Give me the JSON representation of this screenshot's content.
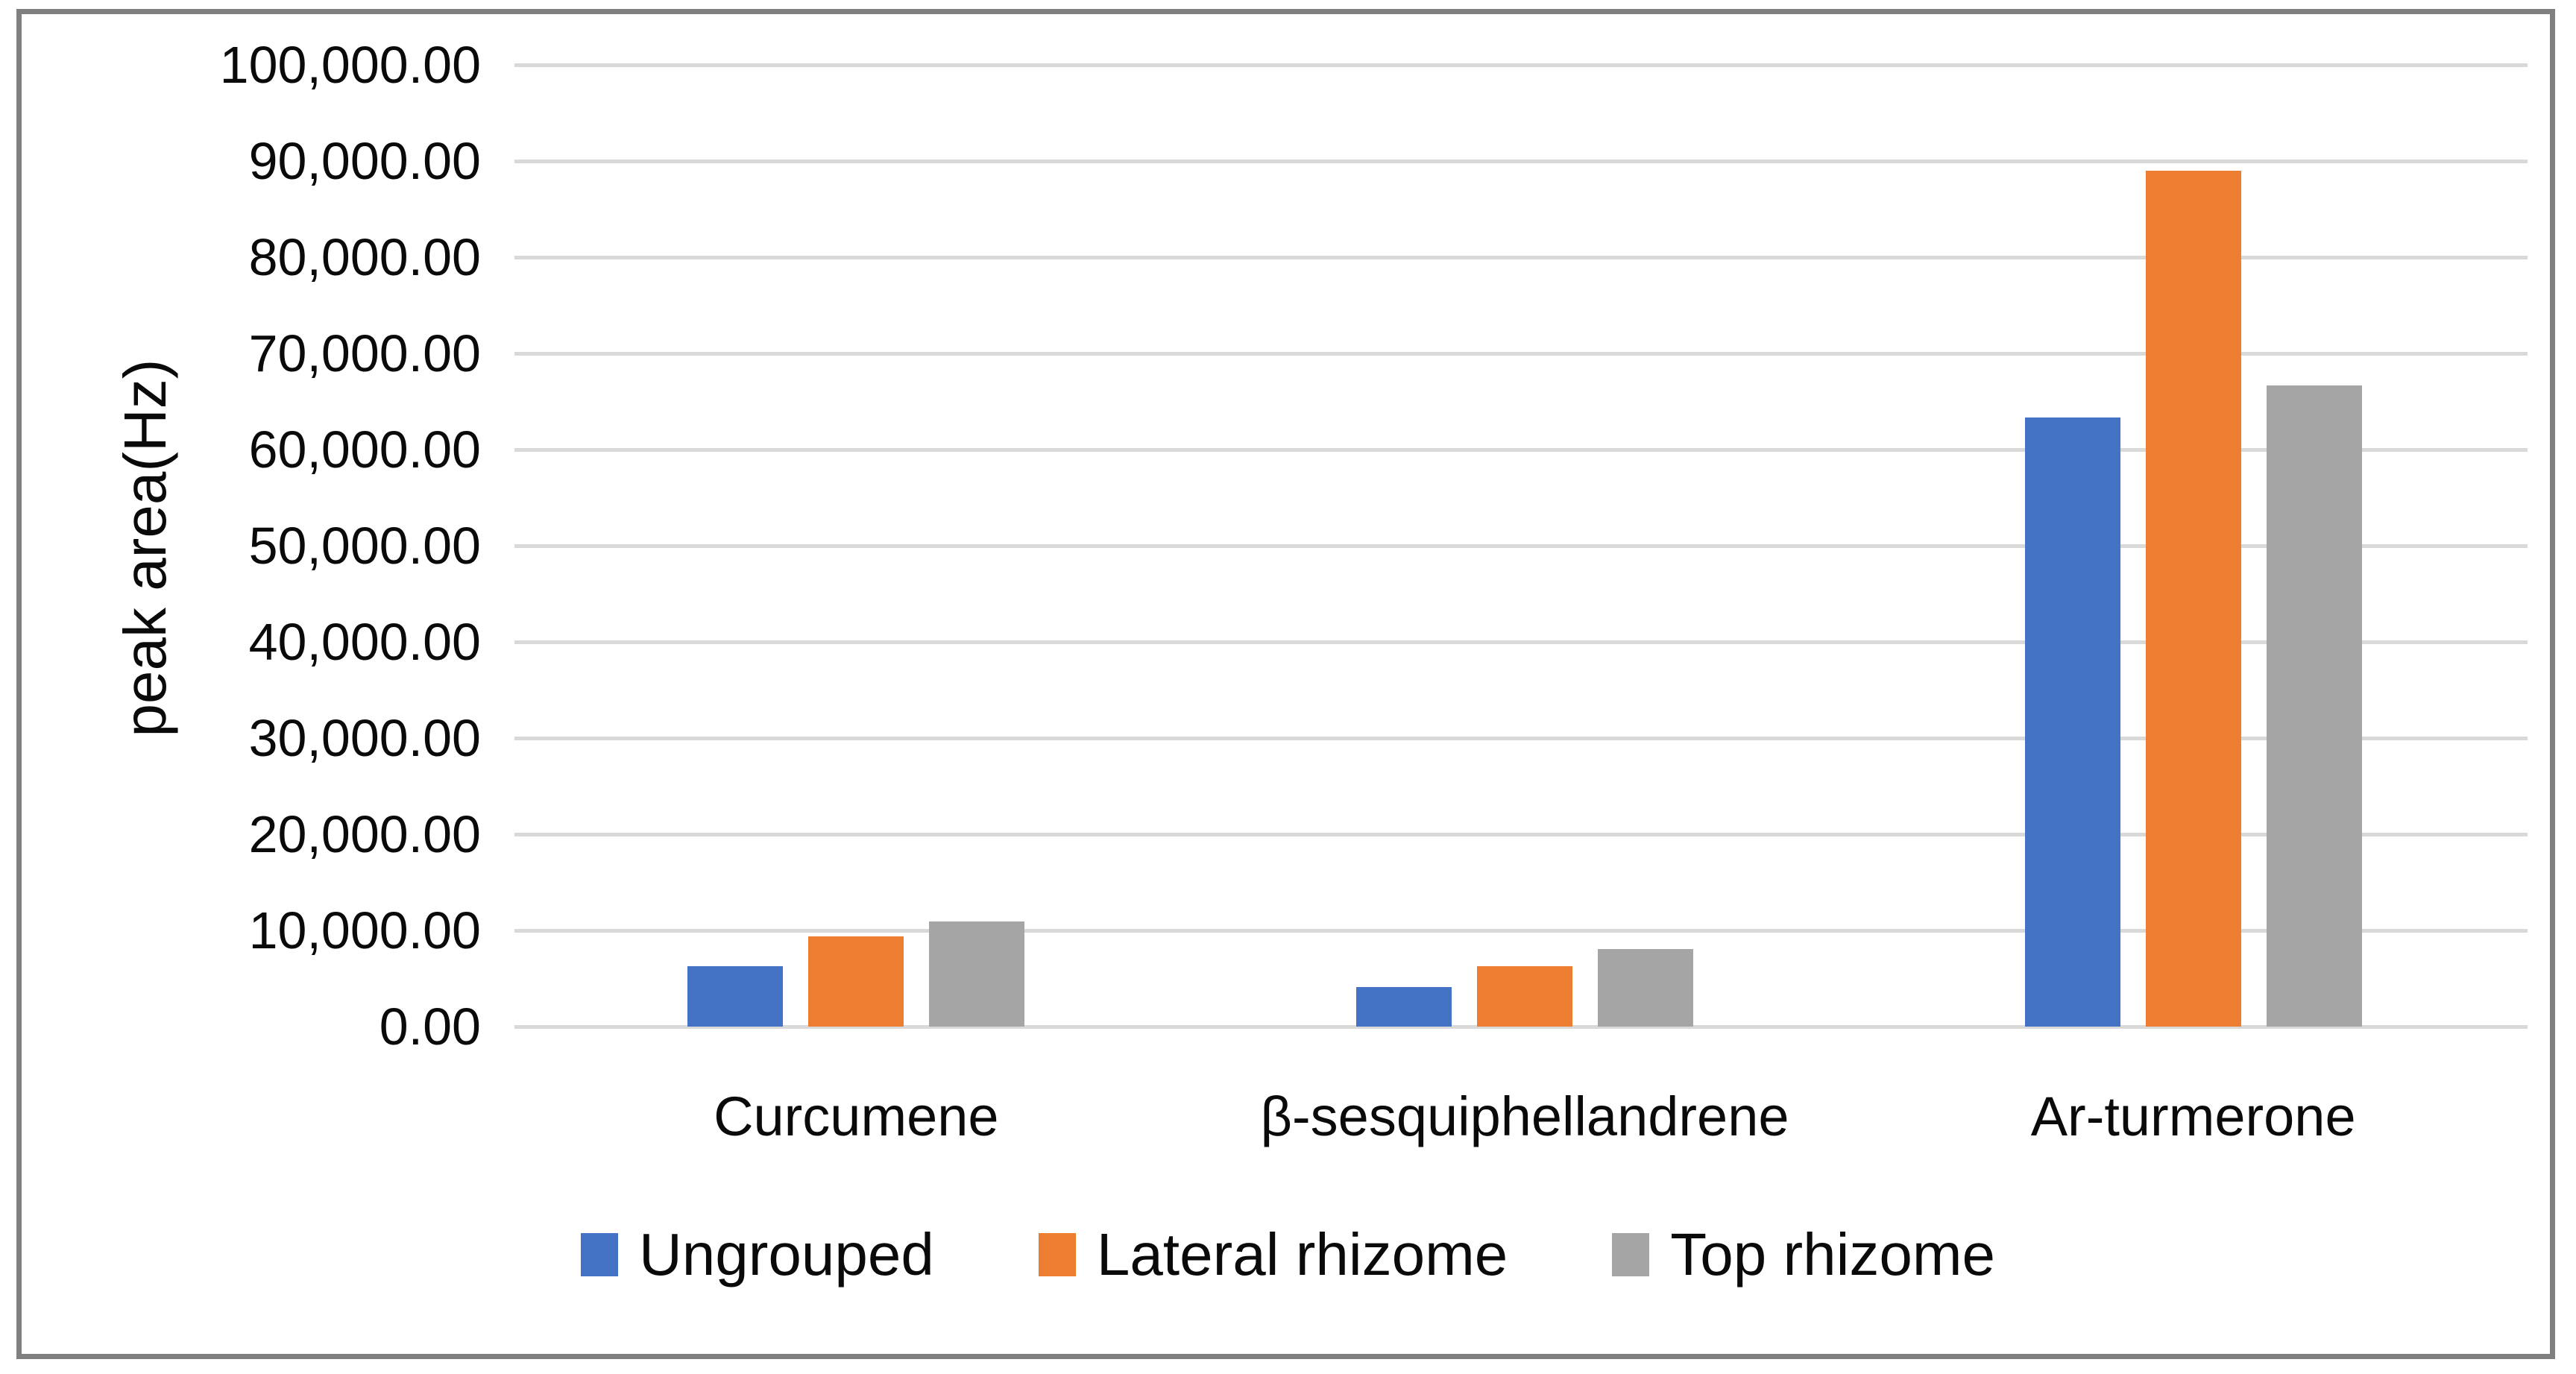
{
  "chart_data": {
    "type": "bar",
    "title": "",
    "ylabel": "peak area(Hz)",
    "xlabel": "",
    "categories": [
      "Curcumene",
      "β-sesquiphellandrene",
      "Ar-turmerone"
    ],
    "series": [
      {
        "name": "Ungrouped",
        "color": "#4472C4",
        "values": [
          6300,
          4100,
          63300
        ]
      },
      {
        "name": "Lateral rhizome",
        "color": "#ED7D31",
        "values": [
          9400,
          6300,
          89000
        ]
      },
      {
        "name": "Top rhizome",
        "color": "#A5A5A5",
        "values": [
          10900,
          8100,
          66700
        ]
      }
    ],
    "y_axis": {
      "min": 0,
      "max": 100000,
      "step": 10000,
      "tick_labels": [
        "0.00",
        "10,000.00",
        "20,000.00",
        "30,000.00",
        "40,000.00",
        "50,000.00",
        "60,000.00",
        "70,000.00",
        "80,000.00",
        "90,000.00",
        "100,000.00"
      ]
    },
    "grid": "horizontal",
    "legend_position": "bottom",
    "gridline_color": "#D9D9D9",
    "frame_color": "#808080",
    "text_color": "#0a0a0a"
  }
}
